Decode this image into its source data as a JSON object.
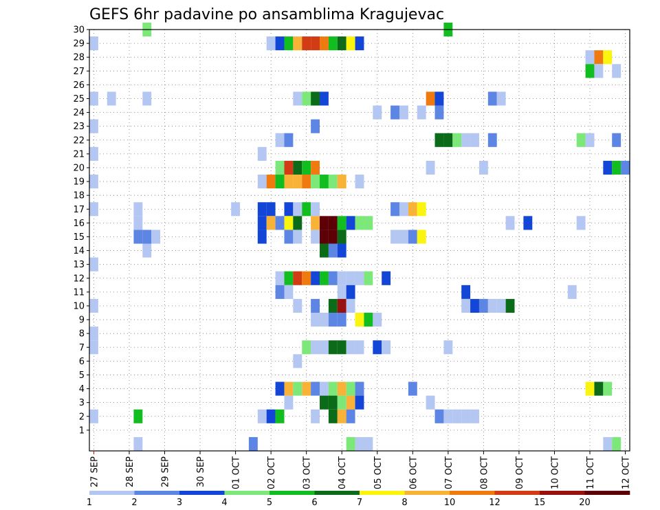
{
  "chart_data": {
    "type": "heatmap",
    "title": "GEFS 6hr padavine po ansamblima Kragujevac",
    "xlabel": "",
    "ylabel": "",
    "x_start_step": -0.5,
    "x_steps_total": 61,
    "steps_per_day": 4,
    "ylim": [
      0,
      30
    ],
    "grid": true,
    "y_ticks": [
      "1",
      "2",
      "3",
      "4",
      "5",
      "6",
      "7",
      "8",
      "9",
      "10",
      "11",
      "12",
      "13",
      "14",
      "15",
      "16",
      "17",
      "18",
      "19",
      "20",
      "21",
      "22",
      "23",
      "24",
      "25",
      "26",
      "27",
      "28",
      "29",
      "30"
    ],
    "x_ticks": [
      {
        "label": "27 SEP",
        "day": 0
      },
      {
        "label": "28 SEP",
        "day": 1
      },
      {
        "label": "29 SEP",
        "day": 2
      },
      {
        "label": "30 SEP",
        "day": 3
      },
      {
        "label": "01 OCT",
        "day": 4
      },
      {
        "label": "02 OCT",
        "day": 5
      },
      {
        "label": "03 OCT",
        "day": 6
      },
      {
        "label": "04 OCT",
        "day": 7
      },
      {
        "label": "05 OCT",
        "day": 8
      },
      {
        "label": "06 OCT",
        "day": 9
      },
      {
        "label": "07 OCT",
        "day": 10
      },
      {
        "label": "08 OCT",
        "day": 11
      },
      {
        "label": "09 OCT",
        "day": 12
      },
      {
        "label": "10 OCT",
        "day": 13
      },
      {
        "label": "11 OCT",
        "day": 14
      },
      {
        "label": "12 OCT",
        "day": 15
      }
    ],
    "colorbar": {
      "labels": [
        "1",
        "2",
        "3",
        "4",
        "5",
        "6",
        "7",
        "8",
        "10",
        "12",
        "15",
        "20"
      ],
      "colors": [
        "#b4c6f2",
        "#5c85e4",
        "#1346d6",
        "#7ce879",
        "#12bd1f",
        "#0c6b18",
        "#fbf40f",
        "#f8b237",
        "#ef7b10",
        "#d23b14",
        "#97110f",
        "#5c0006"
      ]
    },
    "cells": [
      {
        "step": 0,
        "member": 29,
        "level": 0
      },
      {
        "step": 6,
        "member": 30,
        "level": 3
      },
      {
        "step": 20,
        "member": 29,
        "level": 0
      },
      {
        "step": 21,
        "member": 29,
        "level": 2
      },
      {
        "step": 22,
        "member": 29,
        "level": 4
      },
      {
        "step": 23,
        "member": 29,
        "level": 7
      },
      {
        "step": 24,
        "member": 29,
        "level": 9
      },
      {
        "step": 25,
        "member": 29,
        "level": 9
      },
      {
        "step": 26,
        "member": 29,
        "level": 8
      },
      {
        "step": 27,
        "member": 29,
        "level": 4
      },
      {
        "step": 28,
        "member": 29,
        "level": 5
      },
      {
        "step": 29,
        "member": 29,
        "level": 6
      },
      {
        "step": 30,
        "member": 29,
        "level": 2
      },
      {
        "step": 40,
        "member": 30,
        "level": 4
      },
      {
        "step": 56,
        "member": 28,
        "level": 0
      },
      {
        "step": 57,
        "member": 28,
        "level": 8
      },
      {
        "step": 58,
        "member": 28,
        "level": 6
      },
      {
        "step": 56,
        "member": 27,
        "level": 4
      },
      {
        "step": 57,
        "member": 27,
        "level": 0
      },
      {
        "step": 59,
        "member": 27,
        "level": 0
      },
      {
        "step": 0,
        "member": 25,
        "level": 0
      },
      {
        "step": 2,
        "member": 25,
        "level": 0
      },
      {
        "step": 6,
        "member": 25,
        "level": 0
      },
      {
        "step": 23,
        "member": 25,
        "level": 0
      },
      {
        "step": 24,
        "member": 25,
        "level": 3
      },
      {
        "step": 25,
        "member": 25,
        "level": 5
      },
      {
        "step": 26,
        "member": 25,
        "level": 2
      },
      {
        "step": 38,
        "member": 25,
        "level": 8
      },
      {
        "step": 39,
        "member": 25,
        "level": 2
      },
      {
        "step": 45,
        "member": 25,
        "level": 1
      },
      {
        "step": 46,
        "member": 25,
        "level": 0
      },
      {
        "step": 32,
        "member": 24,
        "level": 0
      },
      {
        "step": 34,
        "member": 24,
        "level": 1
      },
      {
        "step": 35,
        "member": 24,
        "level": 0
      },
      {
        "step": 37,
        "member": 24,
        "level": 0
      },
      {
        "step": 39,
        "member": 24,
        "level": 1
      },
      {
        "step": 0,
        "member": 23,
        "level": 0
      },
      {
        "step": 25,
        "member": 23,
        "level": 1
      },
      {
        "step": 21,
        "member": 22,
        "level": 0
      },
      {
        "step": 22,
        "member": 22,
        "level": 1
      },
      {
        "step": 39,
        "member": 22,
        "level": 5
      },
      {
        "step": 40,
        "member": 22,
        "level": 5
      },
      {
        "step": 41,
        "member": 22,
        "level": 3
      },
      {
        "step": 42,
        "member": 22,
        "level": 0
      },
      {
        "step": 43,
        "member": 22,
        "level": 0
      },
      {
        "step": 45,
        "member": 22,
        "level": 1
      },
      {
        "step": 55,
        "member": 22,
        "level": 3
      },
      {
        "step": 56,
        "member": 22,
        "level": 0
      },
      {
        "step": 59,
        "member": 22,
        "level": 1
      },
      {
        "step": 0,
        "member": 21,
        "level": 0
      },
      {
        "step": 19,
        "member": 21,
        "level": 0
      },
      {
        "step": 21,
        "member": 20,
        "level": 3
      },
      {
        "step": 22,
        "member": 20,
        "level": 9
      },
      {
        "step": 23,
        "member": 20,
        "level": 5
      },
      {
        "step": 24,
        "member": 20,
        "level": 4
      },
      {
        "step": 25,
        "member": 20,
        "level": 8
      },
      {
        "step": 38,
        "member": 20,
        "level": 0
      },
      {
        "step": 44,
        "member": 20,
        "level": 0
      },
      {
        "step": 58,
        "member": 20,
        "level": 2
      },
      {
        "step": 59,
        "member": 20,
        "level": 4
      },
      {
        "step": 60,
        "member": 20,
        "level": 1
      },
      {
        "step": 0,
        "member": 19,
        "level": 0
      },
      {
        "step": 19,
        "member": 19,
        "level": 0
      },
      {
        "step": 20,
        "member": 19,
        "level": 8
      },
      {
        "step": 21,
        "member": 19,
        "level": 4
      },
      {
        "step": 22,
        "member": 19,
        "level": 7
      },
      {
        "step": 23,
        "member": 19,
        "level": 7
      },
      {
        "step": 24,
        "member": 19,
        "level": 8
      },
      {
        "step": 25,
        "member": 19,
        "level": 3
      },
      {
        "step": 26,
        "member": 19,
        "level": 4
      },
      {
        "step": 27,
        "member": 19,
        "level": 3
      },
      {
        "step": 28,
        "member": 19,
        "level": 7
      },
      {
        "step": 30,
        "member": 19,
        "level": 0
      },
      {
        "step": 0,
        "member": 17,
        "level": 0
      },
      {
        "step": 5,
        "member": 17,
        "level": 0
      },
      {
        "step": 16,
        "member": 17,
        "level": 0
      },
      {
        "step": 19,
        "member": 17,
        "level": 2
      },
      {
        "step": 20,
        "member": 17,
        "level": 2
      },
      {
        "step": 22,
        "member": 17,
        "level": 2
      },
      {
        "step": 23,
        "member": 17,
        "level": 0
      },
      {
        "step": 24,
        "member": 17,
        "level": 4
      },
      {
        "step": 25,
        "member": 17,
        "level": 0
      },
      {
        "step": 34,
        "member": 17,
        "level": 1
      },
      {
        "step": 35,
        "member": 17,
        "level": 0
      },
      {
        "step": 36,
        "member": 17,
        "level": 7
      },
      {
        "step": 37,
        "member": 17,
        "level": 6
      },
      {
        "step": 5,
        "member": 16,
        "level": 0
      },
      {
        "step": 19,
        "member": 16,
        "level": 2
      },
      {
        "step": 20,
        "member": 16,
        "level": 7
      },
      {
        "step": 21,
        "member": 16,
        "level": 1
      },
      {
        "step": 22,
        "member": 16,
        "level": 6
      },
      {
        "step": 23,
        "member": 16,
        "level": 5
      },
      {
        "step": 25,
        "member": 16,
        "level": 7
      },
      {
        "step": 26,
        "member": 16,
        "level": 11
      },
      {
        "step": 27,
        "member": 16,
        "level": 11
      },
      {
        "step": 28,
        "member": 16,
        "level": 4
      },
      {
        "step": 29,
        "member": 16,
        "level": 2
      },
      {
        "step": 30,
        "member": 16,
        "level": 3
      },
      {
        "step": 31,
        "member": 16,
        "level": 3
      },
      {
        "step": 47,
        "member": 16,
        "level": 0
      },
      {
        "step": 49,
        "member": 16,
        "level": 2
      },
      {
        "step": 55,
        "member": 16,
        "level": 0
      },
      {
        "step": 5,
        "member": 15,
        "level": 1
      },
      {
        "step": 6,
        "member": 15,
        "level": 1
      },
      {
        "step": 7,
        "member": 15,
        "level": 0
      },
      {
        "step": 19,
        "member": 15,
        "level": 2
      },
      {
        "step": 22,
        "member": 15,
        "level": 1
      },
      {
        "step": 23,
        "member": 15,
        "level": 0
      },
      {
        "step": 25,
        "member": 15,
        "level": 0
      },
      {
        "step": 26,
        "member": 15,
        "level": 11
      },
      {
        "step": 27,
        "member": 15,
        "level": 11
      },
      {
        "step": 28,
        "member": 15,
        "level": 5
      },
      {
        "step": 34,
        "member": 15,
        "level": 0
      },
      {
        "step": 35,
        "member": 15,
        "level": 0
      },
      {
        "step": 36,
        "member": 15,
        "level": 1
      },
      {
        "step": 37,
        "member": 15,
        "level": 6
      },
      {
        "step": 6,
        "member": 14,
        "level": 0
      },
      {
        "step": 26,
        "member": 14,
        "level": 5
      },
      {
        "step": 27,
        "member": 14,
        "level": 1
      },
      {
        "step": 28,
        "member": 14,
        "level": 2
      },
      {
        "step": 0,
        "member": 13,
        "level": 0
      },
      {
        "step": 21,
        "member": 12,
        "level": 0
      },
      {
        "step": 22,
        "member": 12,
        "level": 4
      },
      {
        "step": 23,
        "member": 12,
        "level": 9
      },
      {
        "step": 24,
        "member": 12,
        "level": 8
      },
      {
        "step": 25,
        "member": 12,
        "level": 2
      },
      {
        "step": 26,
        "member": 12,
        "level": 4
      },
      {
        "step": 27,
        "member": 12,
        "level": 1
      },
      {
        "step": 28,
        "member": 12,
        "level": 0
      },
      {
        "step": 29,
        "member": 12,
        "level": 0
      },
      {
        "step": 30,
        "member": 12,
        "level": 0
      },
      {
        "step": 31,
        "member": 12,
        "level": 3
      },
      {
        "step": 33,
        "member": 12,
        "level": 2
      },
      {
        "step": 21,
        "member": 11,
        "level": 1
      },
      {
        "step": 22,
        "member": 11,
        "level": 0
      },
      {
        "step": 28,
        "member": 11,
        "level": 0
      },
      {
        "step": 29,
        "member": 11,
        "level": 2
      },
      {
        "step": 42,
        "member": 11,
        "level": 2
      },
      {
        "step": 54,
        "member": 11,
        "level": 0
      },
      {
        "step": 0,
        "member": 10,
        "level": 0
      },
      {
        "step": 23,
        "member": 10,
        "level": 0
      },
      {
        "step": 25,
        "member": 10,
        "level": 1
      },
      {
        "step": 27,
        "member": 10,
        "level": 5
      },
      {
        "step": 28,
        "member": 10,
        "level": 10
      },
      {
        "step": 29,
        "member": 10,
        "level": 0
      },
      {
        "step": 42,
        "member": 10,
        "level": 0
      },
      {
        "step": 43,
        "member": 10,
        "level": 2
      },
      {
        "step": 44,
        "member": 10,
        "level": 1
      },
      {
        "step": 45,
        "member": 10,
        "level": 0
      },
      {
        "step": 46,
        "member": 10,
        "level": 0
      },
      {
        "step": 47,
        "member": 10,
        "level": 5
      },
      {
        "step": 25,
        "member": 9,
        "level": 0
      },
      {
        "step": 26,
        "member": 9,
        "level": 0
      },
      {
        "step": 27,
        "member": 9,
        "level": 1
      },
      {
        "step": 28,
        "member": 9,
        "level": 1
      },
      {
        "step": 30,
        "member": 9,
        "level": 6
      },
      {
        "step": 31,
        "member": 9,
        "level": 4
      },
      {
        "step": 32,
        "member": 9,
        "level": 0
      },
      {
        "step": 0,
        "member": 8,
        "level": 0
      },
      {
        "step": 0,
        "member": 7,
        "level": 0
      },
      {
        "step": 24,
        "member": 7,
        "level": 3
      },
      {
        "step": 25,
        "member": 7,
        "level": 0
      },
      {
        "step": 26,
        "member": 7,
        "level": 0
      },
      {
        "step": 27,
        "member": 7,
        "level": 5
      },
      {
        "step": 28,
        "member": 7,
        "level": 5
      },
      {
        "step": 29,
        "member": 7,
        "level": 0
      },
      {
        "step": 30,
        "member": 7,
        "level": 0
      },
      {
        "step": 32,
        "member": 7,
        "level": 2
      },
      {
        "step": 33,
        "member": 7,
        "level": 0
      },
      {
        "step": 40,
        "member": 7,
        "level": 0
      },
      {
        "step": 23,
        "member": 6,
        "level": 0
      },
      {
        "step": 21,
        "member": 4,
        "level": 2
      },
      {
        "step": 22,
        "member": 4,
        "level": 7
      },
      {
        "step": 23,
        "member": 4,
        "level": 3
      },
      {
        "step": 24,
        "member": 4,
        "level": 7
      },
      {
        "step": 25,
        "member": 4,
        "level": 1
      },
      {
        "step": 26,
        "member": 4,
        "level": 0
      },
      {
        "step": 27,
        "member": 4,
        "level": 3
      },
      {
        "step": 28,
        "member": 4,
        "level": 7
      },
      {
        "step": 29,
        "member": 4,
        "level": 3
      },
      {
        "step": 30,
        "member": 4,
        "level": 1
      },
      {
        "step": 36,
        "member": 4,
        "level": 1
      },
      {
        "step": 56,
        "member": 4,
        "level": 6
      },
      {
        "step": 57,
        "member": 4,
        "level": 5
      },
      {
        "step": 58,
        "member": 4,
        "level": 3
      },
      {
        "step": 22,
        "member": 3,
        "level": 0
      },
      {
        "step": 26,
        "member": 3,
        "level": 5
      },
      {
        "step": 27,
        "member": 3,
        "level": 5
      },
      {
        "step": 28,
        "member": 3,
        "level": 3
      },
      {
        "step": 29,
        "member": 3,
        "level": 7
      },
      {
        "step": 30,
        "member": 3,
        "level": 2
      },
      {
        "step": 38,
        "member": 3,
        "level": 0
      },
      {
        "step": 0,
        "member": 2,
        "level": 0
      },
      {
        "step": 5,
        "member": 2,
        "level": 4
      },
      {
        "step": 19,
        "member": 2,
        "level": 0
      },
      {
        "step": 20,
        "member": 2,
        "level": 2
      },
      {
        "step": 21,
        "member": 2,
        "level": 4
      },
      {
        "step": 25,
        "member": 2,
        "level": 0
      },
      {
        "step": 27,
        "member": 2,
        "level": 5
      },
      {
        "step": 28,
        "member": 2,
        "level": 7
      },
      {
        "step": 29,
        "member": 2,
        "level": 1
      },
      {
        "step": 39,
        "member": 2,
        "level": 1
      },
      {
        "step": 40,
        "member": 2,
        "level": 0
      },
      {
        "step": 41,
        "member": 2,
        "level": 0
      },
      {
        "step": 42,
        "member": 2,
        "level": 0
      },
      {
        "step": 43,
        "member": 2,
        "level": 0
      },
      {
        "step": 5,
        "member": 0,
        "level": 0
      },
      {
        "step": 18,
        "member": 0,
        "level": 1
      },
      {
        "step": 29,
        "member": 0,
        "level": 3
      },
      {
        "step": 30,
        "member": 0,
        "level": 0
      },
      {
        "step": 31,
        "member": 0,
        "level": 0
      },
      {
        "step": 58,
        "member": 0,
        "level": 0
      },
      {
        "step": 59,
        "member": 0,
        "level": 3
      }
    ]
  }
}
